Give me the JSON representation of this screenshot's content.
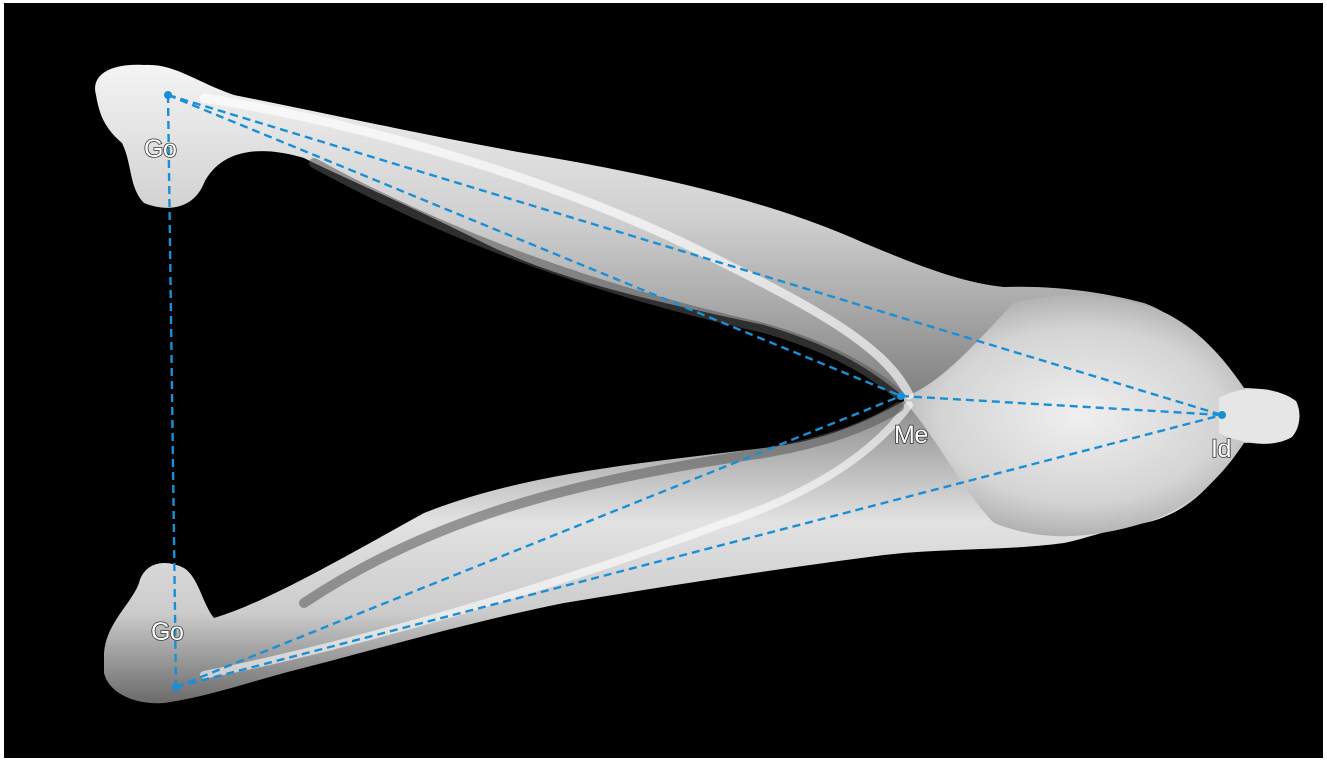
{
  "landmarks": [
    {
      "id": "go_upper",
      "label": "Go"
    },
    {
      "id": "go_lower",
      "label": "Go"
    },
    {
      "id": "me",
      "label": "Me"
    },
    {
      "id": "id",
      "label": "Id"
    }
  ],
  "measurements": [
    {
      "from": "go_upper",
      "to": "go_lower"
    },
    {
      "from": "go_upper",
      "to": "me"
    },
    {
      "from": "go_upper",
      "to": "id"
    },
    {
      "from": "go_lower",
      "to": "me"
    },
    {
      "from": "go_lower",
      "to": "id"
    },
    {
      "from": "me",
      "to": "id"
    }
  ],
  "colors": {
    "background": "#000000",
    "line": "#1a8fd6",
    "bone": "#d9d9d9"
  }
}
